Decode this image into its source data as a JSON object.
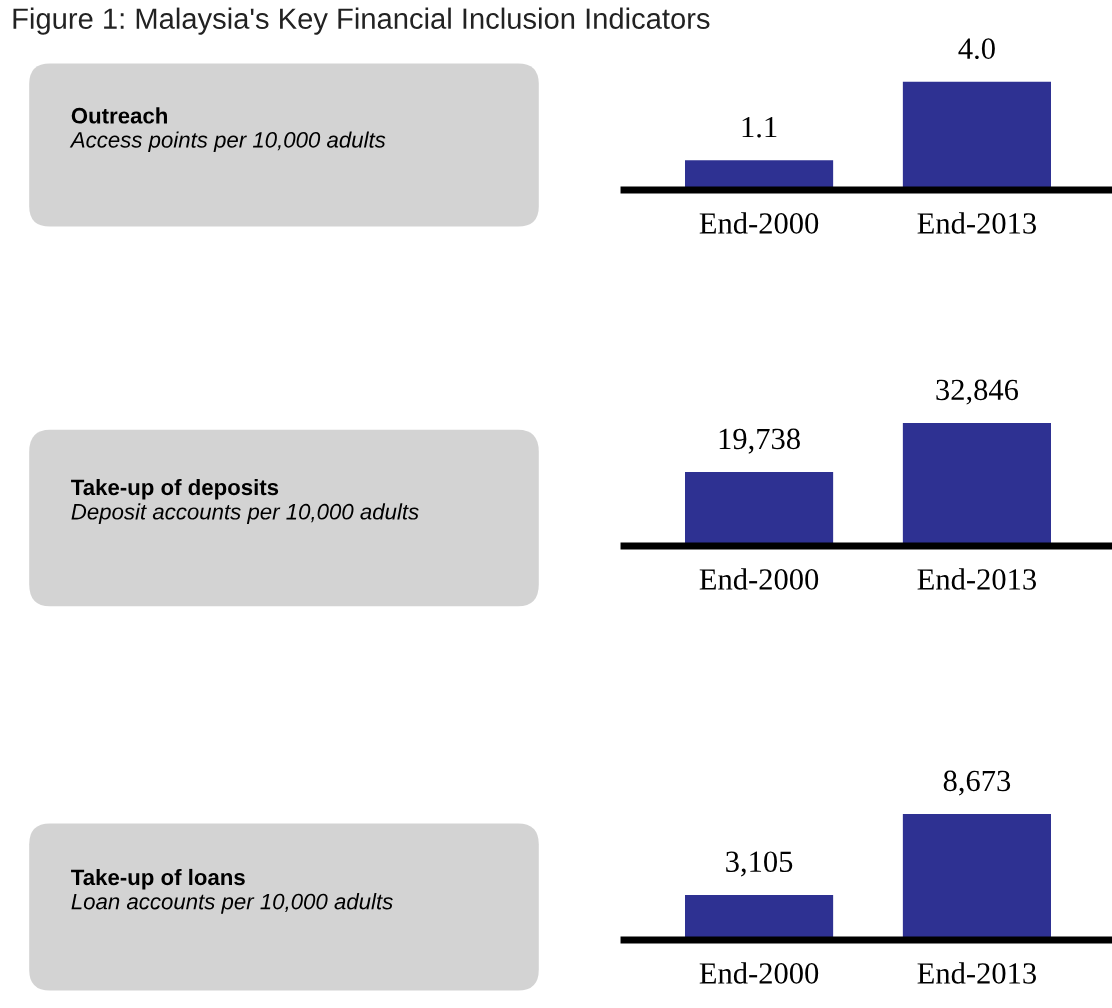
{
  "chart_data": [
    {
      "type": "other",
      "title": "Figure 1: Malaysia's Key Financial Inclusion Indicators"
    },
    {
      "type": "other",
      "title": "Outreach",
      "subtitle": "Access points per 10,000 adults",
      "color": "#d3d3d3"
    },
    {
      "type": "bar",
      "categories": [
        "End-2000",
        "End-2013"
      ],
      "values": [
        1.1,
        4.0
      ],
      "color": "#2e3192",
      "data_labels": true,
      "value_labels": [
        "1.1",
        "4.0"
      ]
    },
    {
      "type": "other",
      "title": "Take-up of deposits",
      "subtitle": "Deposit accounts per 10,000 adults",
      "color": "#d3d3d3"
    },
    {
      "type": "bar",
      "categories": [
        "End-2000",
        "End-2013"
      ],
      "values": [
        19738,
        32846
      ],
      "color": "#2e3192",
      "data_labels": true,
      "value_labels": [
        "19,738",
        "32,846"
      ]
    },
    {
      "type": "other",
      "title": "Take-up of loans",
      "subtitle": "Loan accounts per 10,000 adults",
      "color": "#d3d3d3"
    },
    {
      "type": "bar",
      "categories": [
        "End-2000",
        "End-2013"
      ],
      "values": [
        3105,
        8673
      ],
      "color": "#2e3192",
      "data_labels": true,
      "value_labels": [
        "3,105",
        "8,673"
      ]
    }
  ]
}
